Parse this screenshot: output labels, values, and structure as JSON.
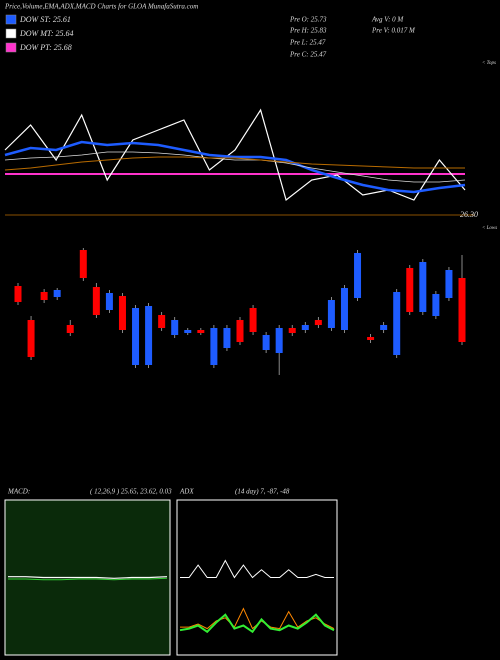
{
  "header": {
    "title": "Price,Volume,EMA,ADX,MACD Charts for GLOA MunafaSutra.com",
    "legend": [
      {
        "label": "DOW ST: 25.61",
        "color": "#1e5cff"
      },
      {
        "label": "DOW MT: 25.64",
        "color": "#ffffff"
      },
      {
        "label": "DOW PT: 25.68",
        "color": "#ff33cc"
      }
    ],
    "stats": [
      "Pre  O: 25.73",
      "Pre  H: 25.83",
      "Pre  L: 25.47",
      "Pre  C: 25.47"
    ],
    "volume": [
      "Avg V: 0  M",
      "Pre  V: 0.017 M"
    ]
  },
  "chart_data": [
    {
      "type": "line",
      "ylim": [
        25.0,
        26.55
      ],
      "annotations": [
        "< Tops",
        "26.30"
      ],
      "hline": {
        "value": 25.41,
        "color": "#ff33cc"
      },
      "series": [
        {
          "color": "#ffffff",
          "width": 1.2,
          "values": [
            25.65,
            25.9,
            25.55,
            26.0,
            25.35,
            25.75,
            25.85,
            25.95,
            25.45,
            25.65,
            26.05,
            25.15,
            25.35,
            25.4,
            25.2,
            25.25,
            25.15,
            25.55,
            25.25
          ]
        },
        {
          "color": "#1e5cff",
          "width": 2.5,
          "values": [
            25.6,
            25.67,
            25.65,
            25.73,
            25.7,
            25.72,
            25.7,
            25.65,
            25.6,
            25.58,
            25.58,
            25.55,
            25.45,
            25.37,
            25.3,
            25.25,
            25.23,
            25.27,
            25.3
          ]
        },
        {
          "color": "#dddddd",
          "width": 0.8,
          "values": [
            25.55,
            25.57,
            25.58,
            25.6,
            25.63,
            25.63,
            25.62,
            25.6,
            25.57,
            25.55,
            25.55,
            25.52,
            25.47,
            25.43,
            25.39,
            25.35,
            25.33,
            25.33,
            25.35
          ]
        },
        {
          "color": "#b86b00",
          "width": 1,
          "values": [
            25.45,
            25.47,
            25.5,
            25.53,
            25.55,
            25.57,
            25.58,
            25.58,
            25.57,
            25.57,
            25.55,
            25.53,
            25.51,
            25.5,
            25.49,
            25.48,
            25.47,
            25.47,
            25.47
          ]
        }
      ]
    },
    {
      "type": "candlestick",
      "ylim": [
        25.0,
        26.4
      ],
      "annotations": [
        "< Lows"
      ],
      "up_color": "#1e5cff",
      "down_color": "#ff0000",
      "open": [
        25.94,
        25.6,
        25.88,
        25.83,
        25.55,
        26.3,
        25.93,
        25.7,
        25.84,
        25.15,
        25.15,
        25.65,
        25.45,
        25.47,
        25.5,
        25.15,
        25.32,
        25.6,
        25.72,
        25.3,
        25.27,
        25.52,
        25.5,
        25.6,
        25.52,
        25.5,
        25.82,
        25.43,
        25.5,
        25.25,
        26.12,
        25.68,
        25.64,
        25.82,
        26.02
      ],
      "high": [
        25.97,
        25.64,
        25.91,
        25.92,
        25.6,
        26.32,
        25.97,
        25.9,
        25.87,
        25.75,
        25.77,
        25.68,
        25.63,
        25.52,
        25.52,
        25.55,
        25.55,
        25.63,
        25.75,
        25.48,
        25.55,
        25.55,
        25.58,
        25.63,
        25.83,
        25.95,
        26.3,
        25.46,
        25.58,
        25.91,
        26.15,
        26.21,
        25.89,
        26.13,
        26.25
      ],
      "low": [
        25.75,
        25.2,
        25.77,
        25.8,
        25.44,
        25.99,
        25.62,
        25.67,
        25.47,
        25.12,
        25.12,
        25.49,
        25.42,
        25.45,
        25.45,
        25.12,
        25.29,
        25.35,
        25.45,
        25.27,
        25.05,
        25.44,
        25.47,
        25.52,
        25.49,
        25.47,
        25.79,
        25.37,
        25.47,
        25.22,
        25.65,
        25.65,
        25.61,
        25.79,
        25.35
      ],
      "close": [
        25.78,
        25.23,
        25.8,
        25.9,
        25.47,
        26.02,
        25.65,
        25.87,
        25.5,
        25.72,
        25.74,
        25.52,
        25.6,
        25.5,
        25.47,
        25.52,
        25.52,
        25.38,
        25.48,
        25.45,
        25.52,
        25.47,
        25.55,
        25.55,
        25.8,
        25.92,
        26.27,
        25.4,
        25.55,
        25.88,
        25.68,
        26.18,
        25.86,
        26.1,
        25.38
      ]
    },
    {
      "type": "line",
      "title": "MACD:",
      "subtitle": "( 12,26,9 ) 25.65, 23.62, 0.03",
      "ylim": [
        -1,
        1
      ],
      "background": "#0a2a0a",
      "series": [
        {
          "color": "#ffffff",
          "width": 1.2,
          "values": [
            0.01,
            0.01,
            0.0,
            0.0,
            0.0,
            0.0,
            -0.01,
            0.0,
            0.0,
            0.01
          ]
        },
        {
          "color": "#33cc33",
          "width": 1,
          "values": [
            -0.02,
            -0.02,
            -0.03,
            -0.03,
            -0.02,
            -0.02,
            -0.03,
            -0.02,
            -0.02,
            -0.01
          ]
        }
      ]
    },
    {
      "type": "line",
      "title": "ADX",
      "subtitle": "(14 day) 7, -87, -48",
      "ylim": [
        0,
        100
      ],
      "background": "#000000",
      "series": [
        {
          "color": "#ffffff",
          "width": 1,
          "values": [
            50,
            50,
            58,
            50,
            50,
            61,
            50,
            58,
            50,
            55,
            50,
            50,
            55,
            50,
            50,
            52,
            50,
            50
          ]
        },
        {
          "color": "#ff8800",
          "width": 1,
          "values": [
            18,
            18,
            20,
            17,
            22,
            24,
            18,
            30,
            17,
            22,
            18,
            17,
            28,
            18,
            22,
            24,
            20,
            17
          ]
        },
        {
          "color": "#33ee33",
          "width": 2,
          "values": [
            16,
            17,
            19,
            15,
            21,
            26,
            17,
            19,
            15,
            23,
            17,
            16,
            19,
            17,
            21,
            26,
            19,
            16
          ]
        }
      ]
    }
  ]
}
